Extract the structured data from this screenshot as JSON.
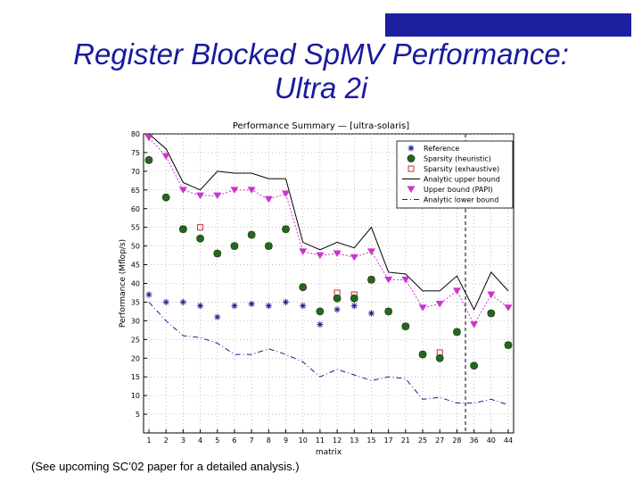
{
  "slide": {
    "title_line1": "Register Blocked SpMV Performance:",
    "title_line2": "Ultra 2i",
    "footnote": "(See upcoming SC’02 paper for a detailed analysis.)"
  },
  "chart_data": {
    "type": "line",
    "title": "Performance Summary — [ultra-solaris]",
    "xlabel": "matrix",
    "ylabel": "Performance (Mflop/s)",
    "categories": [
      "1",
      "2",
      "3",
      "4",
      "5",
      "6",
      "7",
      "8",
      "9",
      "10",
      "11",
      "12",
      "13",
      "15",
      "17",
      "21",
      "25",
      "27",
      "28",
      "36",
      "40",
      "44"
    ],
    "ylim": [
      0,
      80
    ],
    "yticks": [
      5,
      10,
      15,
      20,
      25,
      30,
      35,
      40,
      45,
      50,
      55,
      60,
      65,
      70,
      75,
      80
    ],
    "grid": true,
    "legend_position": "top-right",
    "series": [
      {
        "name": "Reference",
        "marker": "star",
        "color": "#1f1f8f",
        "values": [
          37,
          35,
          35,
          34,
          31,
          34,
          34.5,
          34,
          35,
          34,
          29,
          33,
          34,
          32,
          null,
          null,
          null,
          null,
          null,
          null,
          null,
          null
        ]
      },
      {
        "name": "Sparsity (heuristic)",
        "marker": "filled-circle",
        "color": "#1e6b1e",
        "values": [
          73,
          63,
          54.5,
          52,
          48,
          50,
          53,
          50,
          54.5,
          39,
          32.5,
          36,
          36,
          41,
          32.5,
          28.5,
          21,
          20,
          27,
          18,
          32,
          23.5
        ]
      },
      {
        "name": "Sparsity (exhaustive)",
        "marker": "open-square",
        "color": "#c03030",
        "values": [
          73,
          null,
          54.5,
          55,
          48,
          50,
          53,
          50,
          54.5,
          39,
          null,
          37.5,
          37,
          41,
          32.5,
          28.5,
          21,
          21.5,
          27,
          null,
          32,
          23.5
        ]
      },
      {
        "name": "Analytic upper bound",
        "marker": "none",
        "color": "#000000",
        "dash": "solid",
        "values": [
          80,
          76,
          67,
          65,
          70,
          69.5,
          69.5,
          68,
          68,
          51,
          49,
          51,
          49.5,
          55,
          43,
          42.5,
          38,
          38,
          42,
          33,
          43,
          38
        ]
      },
      {
        "name": "Upper bound (PAPI)",
        "marker": "filled-triangle-down",
        "color": "#cc33cc",
        "values": [
          79,
          74,
          65,
          63.5,
          63.5,
          65,
          65,
          62.5,
          64,
          48.5,
          47.5,
          48,
          47,
          48.5,
          41,
          41,
          33.5,
          34.5,
          38,
          29,
          37,
          33.5
        ]
      },
      {
        "name": "Analytic lower bound",
        "marker": "none",
        "color": "#1f1f8f",
        "dash": "dashdot",
        "values": [
          35,
          30,
          26,
          25.5,
          24,
          21,
          21,
          22.5,
          21,
          19,
          15,
          17,
          15.5,
          14,
          15,
          14.5,
          9,
          9.5,
          8,
          8,
          9,
          7.5
        ]
      }
    ],
    "vline_category": "36"
  }
}
